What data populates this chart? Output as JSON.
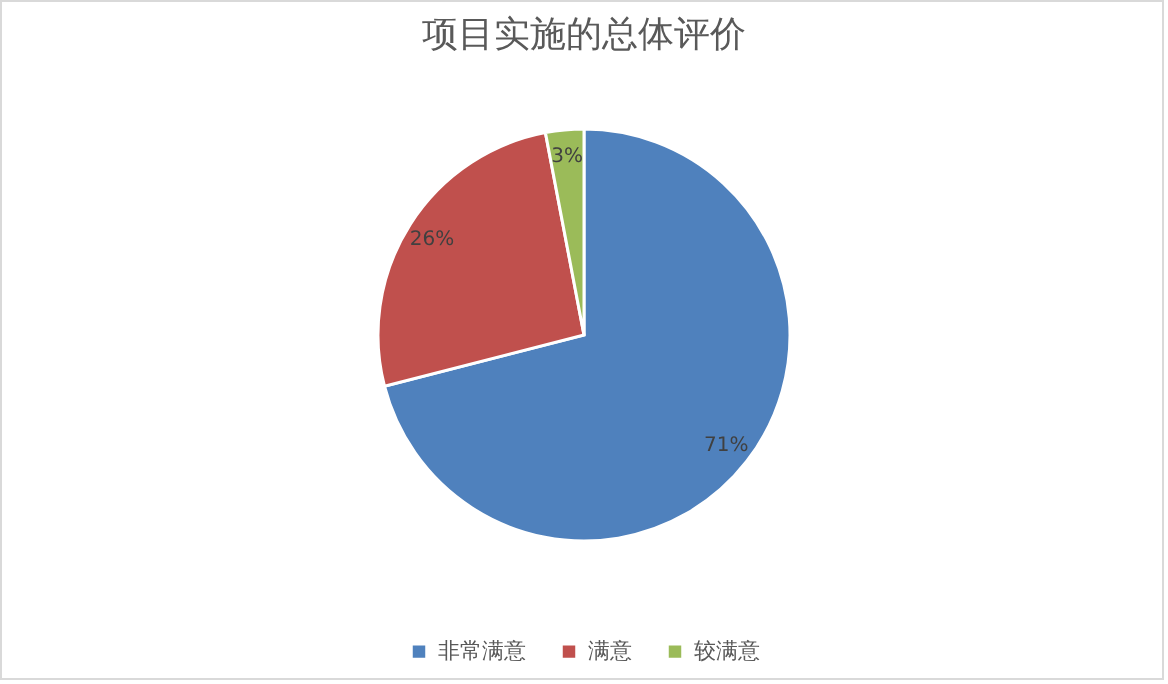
{
  "chart_data": {
    "type": "pie",
    "title": "项目实施的总体评价",
    "categories": [
      "非常满意",
      "满意",
      "较满意"
    ],
    "values": [
      71,
      26,
      3
    ],
    "colors": [
      "#4f81bd",
      "#c0504d",
      "#9bbb59"
    ],
    "value_labels": [
      "71%",
      "26%",
      "3%"
    ],
    "legend": "bottom"
  }
}
